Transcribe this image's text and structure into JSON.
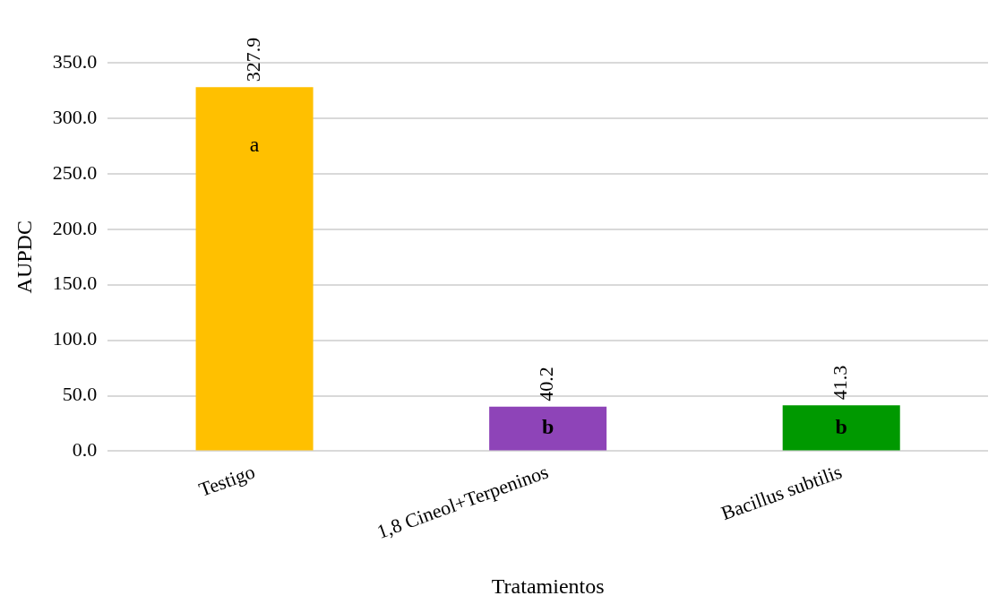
{
  "chart_data": {
    "type": "bar",
    "xlabel": "Tratamientos",
    "ylabel": "AUPDC",
    "categories": [
      "Testigo",
      "1,8 Cineol+Terpeninos",
      "Bacillus subtilis"
    ],
    "values": [
      327.9,
      40.2,
      41.3
    ],
    "colors": [
      "#ffc000",
      "#8e44b8",
      "#009900"
    ],
    "ylim": [
      0,
      350
    ],
    "yticks": [
      {
        "value": 0,
        "label": "0.0"
      },
      {
        "value": 50,
        "label": "50.0"
      },
      {
        "value": 100,
        "label": "100.0"
      },
      {
        "value": 150,
        "label": "150.0"
      },
      {
        "value": 200,
        "label": "200.0"
      },
      {
        "value": 250,
        "label": "250.0"
      },
      {
        "value": 300,
        "label": "300.0"
      },
      {
        "value": 350,
        "label": "350.0"
      }
    ],
    "grid": "y",
    "legend": false,
    "data_labels": true,
    "annotations": [
      "a",
      "b",
      "b"
    ]
  }
}
